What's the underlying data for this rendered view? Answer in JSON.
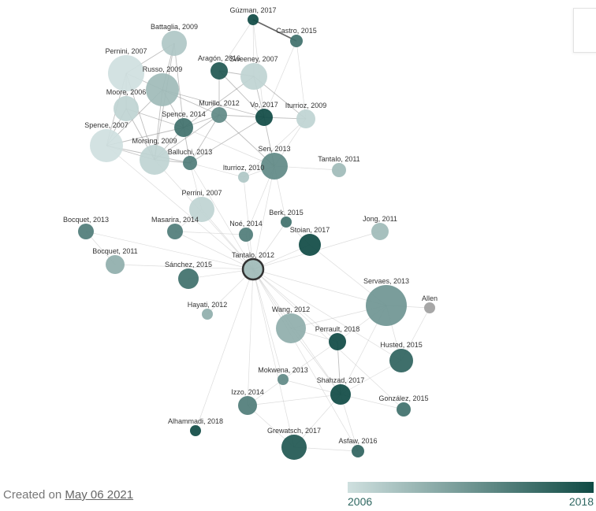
{
  "graph": {
    "nodes": [
      {
        "id": "guzman2017",
        "label": "Gúzman, 2017",
        "year": 2018
      },
      {
        "id": "castro2015",
        "label": "Castro, 2015",
        "year": 2015
      },
      {
        "id": "battaglia2009",
        "label": "Battaglia, 2009",
        "year": 2008
      },
      {
        "id": "pernini2007",
        "label": "Pernini, 2007",
        "year": 2006
      },
      {
        "id": "aragon2016",
        "label": "Aragón, 2016",
        "year": 2017
      },
      {
        "id": "sweeney2007",
        "label": "Sweeney, 2007",
        "year": 2007
      },
      {
        "id": "russo2009",
        "label": "Russo, 2009",
        "year": 2009
      },
      {
        "id": "moore2006",
        "label": "Moore, 2006",
        "year": 2007
      },
      {
        "id": "murillo2012",
        "label": "Murillo, 2012",
        "year": 2013
      },
      {
        "id": "vo2017",
        "label": "Vo, 2017",
        "year": 2018
      },
      {
        "id": "iturrioz2009",
        "label": "Iturrioz, 2009",
        "year": 2007
      },
      {
        "id": "spence2014",
        "label": "Spence, 2014",
        "year": 2015
      },
      {
        "id": "spence2007",
        "label": "Spence, 2007",
        "year": 2006
      },
      {
        "id": "morsing2009",
        "label": "Morsing, 2009",
        "year": 2007
      },
      {
        "id": "balluchi2013",
        "label": "Balluchi, 2013",
        "year": 2014
      },
      {
        "id": "sen2013",
        "label": "Sen, 2013",
        "year": 2013
      },
      {
        "id": "tantalo2011",
        "label": "Tantalo, 2011",
        "year": 2009
      },
      {
        "id": "iturrioz2010",
        "label": "Iturrioz, 2010",
        "year": 2008
      },
      {
        "id": "perrini2007",
        "label": "Perrini, 2007",
        "year": 2007
      },
      {
        "id": "berk2015",
        "label": "Berk, 2015",
        "year": 2015
      },
      {
        "id": "jong2011",
        "label": "Jong, 2011",
        "year": 2009
      },
      {
        "id": "bocquet2013",
        "label": "Bocquet, 2013",
        "year": 2014
      },
      {
        "id": "masarira2014",
        "label": "Masarira, 2014",
        "year": 2014
      },
      {
        "id": "noe2014",
        "label": "Noé, 2014",
        "year": 2014
      },
      {
        "id": "stoian2017",
        "label": "Stoian, 2017",
        "year": 2018
      },
      {
        "id": "bocquet2011",
        "label": "Bocquet, 2011",
        "year": 2010
      },
      {
        "id": "tantalo2012",
        "label": "Tantalo, 2012",
        "year": 2009
      },
      {
        "id": "sanchez2015",
        "label": "Sánchez, 2015",
        "year": 2015
      },
      {
        "id": "servaes2013",
        "label": "Servaes, 2013",
        "year": 2012
      },
      {
        "id": "allen",
        "label": "Allen",
        "year": null
      },
      {
        "id": "hayati2012",
        "label": "Hayati, 2012",
        "year": 2010
      },
      {
        "id": "wang2012",
        "label": "Wang, 2012",
        "year": 2010
      },
      {
        "id": "perrault2018",
        "label": "Perrault, 2018",
        "year": 2018
      },
      {
        "id": "husted2015",
        "label": "Husted, 2015",
        "year": 2016
      },
      {
        "id": "mokwena2013",
        "label": "Mokwena, 2013",
        "year": 2013
      },
      {
        "id": "shahzad2017",
        "label": "Shahzad, 2017",
        "year": 2018
      },
      {
        "id": "izzo2014",
        "label": "Izzo, 2014",
        "year": 2014
      },
      {
        "id": "gonzalez2015",
        "label": "González, 2015",
        "year": 2015
      },
      {
        "id": "alhammadi2018",
        "label": "Alhammadi, 2018",
        "year": 2018
      },
      {
        "id": "grewatsch2017",
        "label": "Grewatsch, 2017",
        "year": 2017
      },
      {
        "id": "asfaw2016",
        "label": "Asfaw, 2016",
        "year": 2016
      }
    ],
    "edges": [
      {
        "source": "guzman2017",
        "target": "castro2015",
        "weight": 3
      },
      {
        "source": "guzman2017",
        "target": "sweeney2007",
        "weight": 1
      },
      {
        "source": "guzman2017",
        "target": "vo2017",
        "weight": 1
      },
      {
        "source": "guzman2017",
        "target": "aragon2016",
        "weight": 1
      },
      {
        "source": "castro2015",
        "target": "vo2017",
        "weight": 1
      },
      {
        "source": "castro2015",
        "target": "iturrioz2009",
        "weight": 1
      },
      {
        "source": "battaglia2009",
        "target": "russo2009",
        "weight": 2
      },
      {
        "source": "battaglia2009",
        "target": "pernini2007",
        "weight": 2
      },
      {
        "source": "battaglia2009",
        "target": "spence2014",
        "weight": 2
      },
      {
        "source": "battaglia2009",
        "target": "morsing2009",
        "weight": 2
      },
      {
        "source": "pernini2007",
        "target": "russo2009",
        "weight": 2
      },
      {
        "source": "pernini2007",
        "target": "moore2006",
        "weight": 2
      },
      {
        "source": "pernini2007",
        "target": "spence2007",
        "weight": 2
      },
      {
        "source": "pernini2007",
        "target": "morsing2009",
        "weight": 2
      },
      {
        "source": "russo2009",
        "target": "spence2007",
        "weight": 2
      },
      {
        "source": "russo2009",
        "target": "spence2014",
        "weight": 2
      },
      {
        "source": "russo2009",
        "target": "morsing2009",
        "weight": 2
      },
      {
        "source": "russo2009",
        "target": "murillo2012",
        "weight": 2
      },
      {
        "source": "russo2009",
        "target": "vo2017",
        "weight": 2
      },
      {
        "source": "moore2006",
        "target": "spence2007",
        "weight": 2
      },
      {
        "source": "moore2006",
        "target": "morsing2009",
        "weight": 2
      },
      {
        "source": "moore2006",
        "target": "spence2014",
        "weight": 2
      },
      {
        "source": "spence2007",
        "target": "morsing2009",
        "weight": 2
      },
      {
        "source": "spence2007",
        "target": "spence2014",
        "weight": 2
      },
      {
        "source": "spence2007",
        "target": "balluchi2013",
        "weight": 2
      },
      {
        "source": "morsing2009",
        "target": "spence2014",
        "weight": 2
      },
      {
        "source": "morsing2009",
        "target": "balluchi2013",
        "weight": 2
      },
      {
        "source": "morsing2009",
        "target": "murillo2012",
        "weight": 2
      },
      {
        "source": "aragon2016",
        "target": "sweeney2007",
        "weight": 2
      },
      {
        "source": "aragon2016",
        "target": "vo2017",
        "weight": 2
      },
      {
        "source": "aragon2016",
        "target": "murillo2012",
        "weight": 2
      },
      {
        "source": "sweeney2007",
        "target": "vo2017",
        "weight": 2
      },
      {
        "source": "sweeney2007",
        "target": "iturrioz2009",
        "weight": 2
      },
      {
        "source": "sweeney2007",
        "target": "spence2014",
        "weight": 2
      },
      {
        "source": "vo2017",
        "target": "iturrioz2009",
        "weight": 2
      },
      {
        "source": "vo2017",
        "target": "sen2013",
        "weight": 2
      },
      {
        "source": "vo2017",
        "target": "murillo2012",
        "weight": 2
      },
      {
        "source": "vo2017",
        "target": "balluchi2013",
        "weight": 2
      },
      {
        "source": "murillo2012",
        "target": "spence2014",
        "weight": 2
      },
      {
        "source": "murillo2012",
        "target": "balluchi2013",
        "weight": 2
      },
      {
        "source": "murillo2012",
        "target": "sen2013",
        "weight": 2
      },
      {
        "source": "spence2014",
        "target": "balluchi2013",
        "weight": 2
      },
      {
        "source": "spence2014",
        "target": "sen2013",
        "weight": 1
      },
      {
        "source": "iturrioz2009",
        "target": "sen2013",
        "weight": 1
      },
      {
        "source": "iturrioz2009",
        "target": "iturrioz2010",
        "weight": 1
      },
      {
        "source": "balluchi2013",
        "target": "perrini2007",
        "weight": 1
      },
      {
        "source": "balluchi2013",
        "target": "iturrioz2010",
        "weight": 1
      },
      {
        "source": "sen2013",
        "target": "iturrioz2010",
        "weight": 1
      },
      {
        "source": "sen2013",
        "target": "tantalo2012",
        "weight": 1
      },
      {
        "source": "sen2013",
        "target": "tantalo2011",
        "weight": 1
      },
      {
        "source": "sen2013",
        "target": "berk2015",
        "weight": 1
      },
      {
        "source": "perrini2007",
        "target": "tantalo2012",
        "weight": 1
      },
      {
        "source": "perrini2007",
        "target": "masarira2014",
        "weight": 1
      },
      {
        "source": "iturrioz2010",
        "target": "tantalo2012",
        "weight": 1
      },
      {
        "source": "noe2014",
        "target": "tantalo2012",
        "weight": 1
      },
      {
        "source": "berk2015",
        "target": "tantalo2012",
        "weight": 1
      },
      {
        "source": "stoian2017",
        "target": "tantalo2012",
        "weight": 1
      },
      {
        "source": "jong2011",
        "target": "tantalo2012",
        "weight": 1
      },
      {
        "source": "bocquet2013",
        "target": "tantalo2012",
        "weight": 1
      },
      {
        "source": "bocquet2011",
        "target": "tantalo2012",
        "weight": 1
      },
      {
        "source": "masarira2014",
        "target": "tantalo2012",
        "weight": 1
      },
      {
        "source": "sanchez2015",
        "target": "tantalo2012",
        "weight": 1
      },
      {
        "source": "hayati2012",
        "target": "tantalo2012",
        "weight": 1
      },
      {
        "source": "servaes2013",
        "target": "tantalo2012",
        "weight": 1
      },
      {
        "source": "wang2012",
        "target": "tantalo2012",
        "weight": 1
      },
      {
        "source": "perrault2018",
        "target": "tantalo2012",
        "weight": 1
      },
      {
        "source": "mokwena2013",
        "target": "tantalo2012",
        "weight": 1
      },
      {
        "source": "shahzad2017",
        "target": "tantalo2012",
        "weight": 1
      },
      {
        "source": "izzo2014",
        "target": "tantalo2012",
        "weight": 1
      },
      {
        "source": "grewatsch2017",
        "target": "tantalo2012",
        "weight": 1
      },
      {
        "source": "alhammadi2018",
        "target": "tantalo2012",
        "weight": 1
      },
      {
        "source": "asfaw2016",
        "target": "tantalo2012",
        "weight": 1
      },
      {
        "source": "husted2015",
        "target": "tantalo2012",
        "weight": 1
      },
      {
        "source": "gonzalez2015",
        "target": "tantalo2012",
        "weight": 1
      },
      {
        "source": "spence2007",
        "target": "tantalo2012",
        "weight": 1
      },
      {
        "source": "morsing2009",
        "target": "tantalo2012",
        "weight": 1
      },
      {
        "source": "balluchi2013",
        "target": "tantalo2012",
        "weight": 1
      },
      {
        "source": "bocquet2013",
        "target": "bocquet2011",
        "weight": 1
      },
      {
        "source": "servaes2013",
        "target": "allen",
        "weight": 1
      },
      {
        "source": "servaes2013",
        "target": "wang2012",
        "weight": 1
      },
      {
        "source": "servaes2013",
        "target": "husted2015",
        "weight": 1
      },
      {
        "source": "servaes2013",
        "target": "perrault2018",
        "weight": 1
      },
      {
        "source": "servaes2013",
        "target": "shahzad2017",
        "weight": 1
      },
      {
        "source": "servaes2013",
        "target": "stoian2017",
        "weight": 1
      },
      {
        "source": "perrault2018",
        "target": "shahzad2017",
        "weight": 2
      },
      {
        "source": "perrault2018",
        "target": "wang2012",
        "weight": 1
      },
      {
        "source": "perrault2018",
        "target": "mokwena2013",
        "weight": 1
      },
      {
        "source": "shahzad2017",
        "target": "mokwena2013",
        "weight": 1
      },
      {
        "source": "shahzad2017",
        "target": "izzo2014",
        "weight": 1
      },
      {
        "source": "shahzad2017",
        "target": "grewatsch2017",
        "weight": 1
      },
      {
        "source": "shahzad2017",
        "target": "gonzalez2015",
        "weight": 1
      },
      {
        "source": "shahzad2017",
        "target": "asfaw2016",
        "weight": 1
      },
      {
        "source": "mokwena2013",
        "target": "izzo2014",
        "weight": 1
      },
      {
        "source": "izzo2014",
        "target": "grewatsch2017",
        "weight": 1
      },
      {
        "source": "grewatsch2017",
        "target": "asfaw2016",
        "weight": 1
      },
      {
        "source": "wang2012",
        "target": "shahzad2017",
        "weight": 1
      },
      {
        "source": "stoian2017",
        "target": "berk2015",
        "weight": 1
      },
      {
        "source": "husted2015",
        "target": "shahzad2017",
        "weight": 1
      },
      {
        "source": "allen",
        "target": "husted2015",
        "weight": 1
      },
      {
        "source": "noe2014",
        "target": "masarira2014",
        "weight": 1
      },
      {
        "source": "noe2014",
        "target": "sen2013",
        "weight": 1
      }
    ]
  },
  "footer": {
    "created_prefix": "Created on",
    "created_date": "May 06 2021"
  },
  "legend": {
    "min_label": "2006",
    "max_label": "2018",
    "min_year": 2006,
    "max_year": 2018,
    "color_min": "#cfe0df",
    "color_max": "#0f4a44",
    "no_year_color": "#a0a0a0"
  }
}
